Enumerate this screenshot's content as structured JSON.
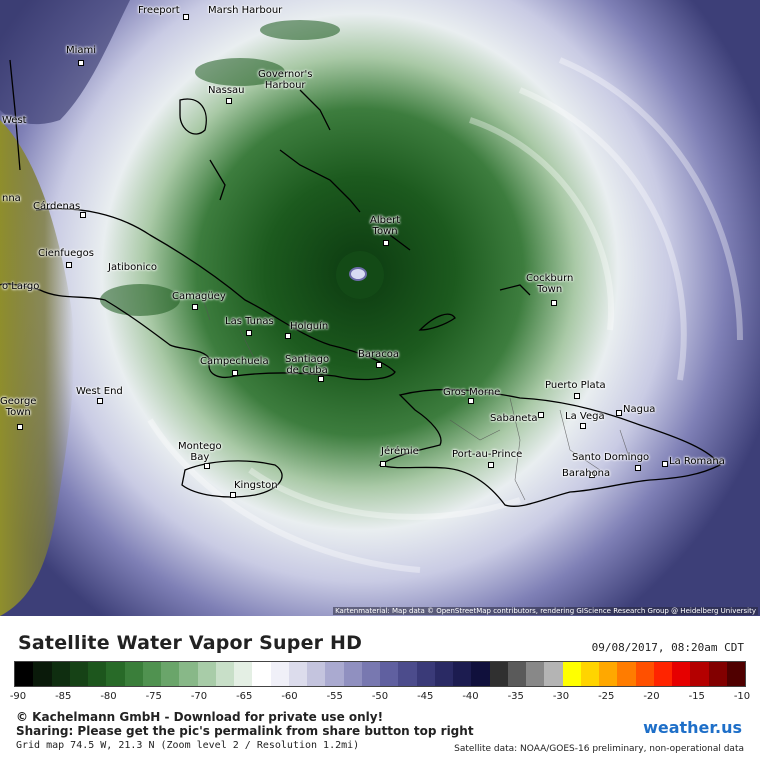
{
  "map": {
    "credit": "Kartenmaterial: Map data © OpenStreetMap contributors, rendering GIScience Research Group @ Heidelberg University",
    "eye_label": "",
    "cities": [
      {
        "name": "Freeport"
      },
      {
        "name": "Marsh Harbour"
      },
      {
        "name": "Miami"
      },
      {
        "name": "Governor's\nHarbour"
      },
      {
        "name": "Nassau"
      },
      {
        "name": "West"
      },
      {
        "name": "nna"
      },
      {
        "name": "Cárdenas"
      },
      {
        "name": "Albert\nTown"
      },
      {
        "name": "Cienfuegos"
      },
      {
        "name": "Jatibonico"
      },
      {
        "name": "Cockburn\nTown"
      },
      {
        "name": "o Largo"
      },
      {
        "name": "Camagüey"
      },
      {
        "name": "Las Tunas"
      },
      {
        "name": "Holguín"
      },
      {
        "name": "Campechuela"
      },
      {
        "name": "Santiago\nde Cuba"
      },
      {
        "name": "Baracoa"
      },
      {
        "name": "Puerto Plata"
      },
      {
        "name": "Gros Morne"
      },
      {
        "name": "George\nTown"
      },
      {
        "name": "West End"
      },
      {
        "name": "Sabaneta"
      },
      {
        "name": "La Vega"
      },
      {
        "name": "Nagua"
      },
      {
        "name": "Montego\nBay"
      },
      {
        "name": "Jérémie"
      },
      {
        "name": "Port-au-Prince"
      },
      {
        "name": "Santo Domingo"
      },
      {
        "name": "La Romana"
      },
      {
        "name": "Barahona"
      },
      {
        "name": "Kingston"
      }
    ]
  },
  "legend": {
    "title": "Satellite Water Vapor Super HD",
    "timestamp": "09/08/2017, 08:20am CDT",
    "tick_labels": [
      "-90",
      "-85",
      "-80",
      "-75",
      "-70",
      "-65",
      "-60",
      "-55",
      "-50",
      "-45",
      "-40",
      "-35",
      "-30",
      "-25",
      "-20",
      "-15",
      "-10"
    ],
    "colors": [
      "#000000",
      "#0a1a0a",
      "#0f2e10",
      "#164216",
      "#1d561d",
      "#286a28",
      "#3a7e3a",
      "#509250",
      "#6aa56a",
      "#88b888",
      "#a8cca8",
      "#c8dfc8",
      "#e4efe4",
      "#ffffff",
      "#f0f0f8",
      "#dcdcec",
      "#c4c4de",
      "#aaaad0",
      "#9090c0",
      "#7878b0",
      "#6060a0",
      "#4c4c8c",
      "#3a3a78",
      "#2a2a64",
      "#1c1c50",
      "#10103c",
      "#303030",
      "#5a5a5a",
      "#888888",
      "#b4b4b4",
      "#ffff00",
      "#ffd400",
      "#ffa800",
      "#ff7c00",
      "#ff5000",
      "#ff2400",
      "#e60000",
      "#b40000",
      "#820000",
      "#500000"
    ]
  },
  "footer": {
    "copyright": "© Kachelmann GmbH - Download for private use only!",
    "sharing": "Sharing: Please get the pic's permalink from share button top right",
    "grid": "Grid map 74.5 W, 21.3 N (Zoom level 2 / Resolution 1.2mi)",
    "brand": "weather.us",
    "source": "Satellite data: NOAA/GOES-16 preliminary, non-operational data"
  }
}
